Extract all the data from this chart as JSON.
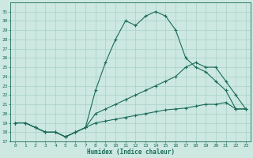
{
  "xlabel": "Humidex (Indice chaleur)",
  "bg_color": "#cce8e0",
  "grid_color": "#a8d0c8",
  "line_color": "#1a6b5a",
  "xlim": [
    -0.5,
    23.5
  ],
  "ylim": [
    17,
    32
  ],
  "yticks": [
    17,
    18,
    19,
    20,
    21,
    22,
    23,
    24,
    25,
    26,
    27,
    28,
    29,
    30,
    31
  ],
  "xticks": [
    0,
    1,
    2,
    3,
    4,
    5,
    6,
    7,
    8,
    9,
    10,
    11,
    12,
    13,
    14,
    15,
    16,
    17,
    18,
    19,
    20,
    21,
    22,
    23
  ],
  "line1_x": [
    0,
    1,
    2,
    3,
    4,
    5,
    6,
    7,
    8,
    9,
    10,
    11,
    12,
    13,
    14,
    15,
    16,
    17,
    18,
    19,
    20,
    21,
    22,
    23
  ],
  "line1_y": [
    19,
    19,
    18.5,
    18,
    18,
    17.5,
    18,
    18.5,
    22.5,
    25.5,
    28,
    30,
    29.5,
    30.5,
    31,
    30.5,
    29,
    26,
    25,
    24.5,
    23.5,
    22.5,
    20.5,
    20.5
  ],
  "line2_x": [
    0,
    1,
    2,
    3,
    4,
    5,
    6,
    7,
    8,
    9,
    10,
    11,
    12,
    13,
    14,
    15,
    16,
    17,
    18,
    19,
    20,
    21,
    22,
    23
  ],
  "line2_y": [
    19,
    19,
    18.5,
    18,
    18,
    17.5,
    18,
    18.5,
    20,
    20.5,
    21,
    21.5,
    22,
    22.5,
    23,
    23.5,
    24,
    25,
    25.5,
    25,
    25,
    23.5,
    22,
    20.5
  ],
  "line3_x": [
    0,
    1,
    2,
    3,
    4,
    5,
    6,
    7,
    8,
    9,
    10,
    11,
    12,
    13,
    14,
    15,
    16,
    17,
    18,
    19,
    20,
    21,
    22,
    23
  ],
  "line3_y": [
    19,
    19,
    18.5,
    18,
    18,
    17.5,
    18,
    18.5,
    19,
    19.2,
    19.4,
    19.6,
    19.8,
    20,
    20.2,
    20.4,
    20.5,
    20.6,
    20.8,
    21,
    21,
    21.2,
    20.5,
    20.5
  ]
}
